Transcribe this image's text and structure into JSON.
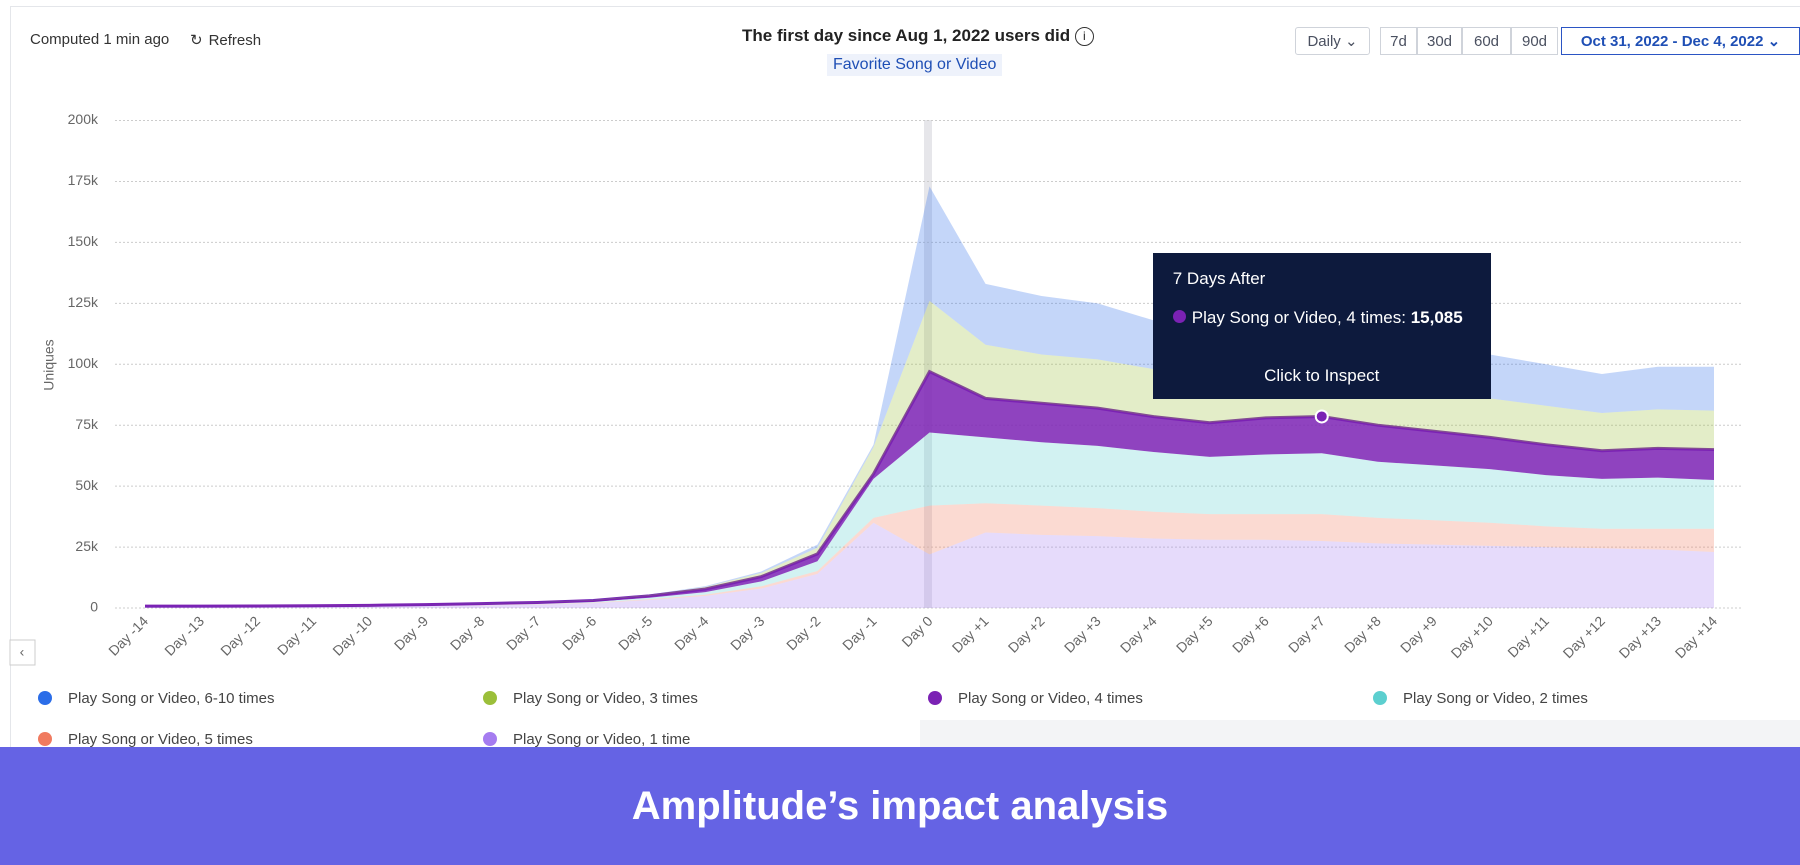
{
  "header": {
    "status": "Computed 1 min ago",
    "refresh": "Refresh",
    "title": "The first day since Aug 1, 2022 users did",
    "event": "Favorite Song or Video",
    "interval": "Daily",
    "ranges": [
      "7d",
      "30d",
      "60d",
      "90d"
    ],
    "date_range": "Oct 31, 2022 - Dec 4, 2022"
  },
  "chart_data": {
    "type": "area",
    "stacked": true,
    "ylabel": "Uniques",
    "categories": [
      "Day -14",
      "Day -13",
      "Day -12",
      "Day -11",
      "Day -10",
      "Day -9",
      "Day -8",
      "Day -7",
      "Day -6",
      "Day -5",
      "Day -4",
      "Day -3",
      "Day -2",
      "Day -1",
      "Day 0",
      "Day +1",
      "Day +2",
      "Day +3",
      "Day +4",
      "Day +5",
      "Day +6",
      "Day +7",
      "Day +8",
      "Day +9",
      "Day +10",
      "Day +11",
      "Day +12",
      "Day +13",
      "Day +14"
    ],
    "series": [
      {
        "name": "Play Song or Video, 6-10 times",
        "color": "#2b6de8",
        "values": [
          20,
          20,
          20,
          40,
          40,
          50,
          80,
          70,
          150,
          100,
          400,
          600,
          1300,
          1000,
          47000,
          25000,
          24000,
          23000,
          20000,
          17000,
          17000,
          16000,
          16000,
          16000,
          18000,
          17000,
          16000,
          17500,
          18000
        ]
      },
      {
        "name": "Play Song or Video, 3 times",
        "color": "#9bbf3a",
        "values": [
          30,
          30,
          40,
          50,
          60,
          80,
          120,
          150,
          250,
          400,
          800,
          1500,
          2500,
          11000,
          29000,
          22000,
          20000,
          20000,
          19500,
          19000,
          20000,
          18500,
          17000,
          17500,
          16000,
          16000,
          15500,
          16000,
          16000
        ]
      },
      {
        "name": "Play Song or Video, 4 times",
        "color": "#7b22b4",
        "highlighted": true,
        "values": [
          100,
          100,
          120,
          130,
          170,
          220,
          320,
          420,
          500,
          800,
          1300,
          2000,
          3000,
          2000,
          25000,
          16000,
          16000,
          15500,
          14500,
          14000,
          15000,
          15085,
          15000,
          14000,
          13000,
          12500,
          11500,
          12000,
          12500
        ]
      },
      {
        "name": "Play Song or Video, 2 times",
        "color": "#5ccfcf",
        "values": [
          100,
          100,
          100,
          120,
          150,
          200,
          250,
          300,
          400,
          600,
          1000,
          2000,
          4000,
          16000,
          30000,
          27000,
          26000,
          25500,
          24500,
          23500,
          24500,
          25000,
          23000,
          22500,
          22000,
          21000,
          20500,
          21000,
          20000
        ]
      },
      {
        "name": "Play Song or Video, 5 times",
        "color": "#f07a5f",
        "values": [
          50,
          50,
          50,
          60,
          80,
          100,
          130,
          160,
          200,
          300,
          500,
          900,
          1200,
          2000,
          20000,
          12000,
          12000,
          11500,
          11000,
          10500,
          10500,
          11000,
          10500,
          10000,
          9500,
          8500,
          8000,
          8500,
          9500
        ]
      },
      {
        "name": "Play Song or Video, 1 time",
        "color": "#a57cf0",
        "values": [
          500,
          500,
          550,
          600,
          700,
          850,
          1100,
          1400,
          2000,
          3300,
          5000,
          8000,
          14000,
          35000,
          22000,
          31000,
          30000,
          29500,
          28500,
          28000,
          28000,
          27500,
          26500,
          26000,
          25500,
          25000,
          24500,
          24000,
          23000
        ]
      }
    ],
    "ylim": [
      0,
      200000
    ],
    "yticks": [
      0,
      {
        "value": 25000,
        "label": "25k"
      },
      {
        "value": 50000,
        "label": "50k"
      },
      {
        "value": 75000,
        "label": "75k"
      },
      {
        "value": 100000,
        "label": "100k"
      },
      {
        "value": 125000,
        "label": "125k"
      },
      {
        "value": 150000,
        "label": "150k"
      },
      {
        "value": 175000,
        "label": "175k"
      },
      {
        "value": 200000,
        "label": "200k"
      }
    ],
    "grid": true
  },
  "tooltip": {
    "title": "7 Days After",
    "label": "Play Song or Video, 4 times:",
    "value": "15,085",
    "action": "Click to Inspect"
  },
  "banner": "Amplitude’s impact analysis"
}
